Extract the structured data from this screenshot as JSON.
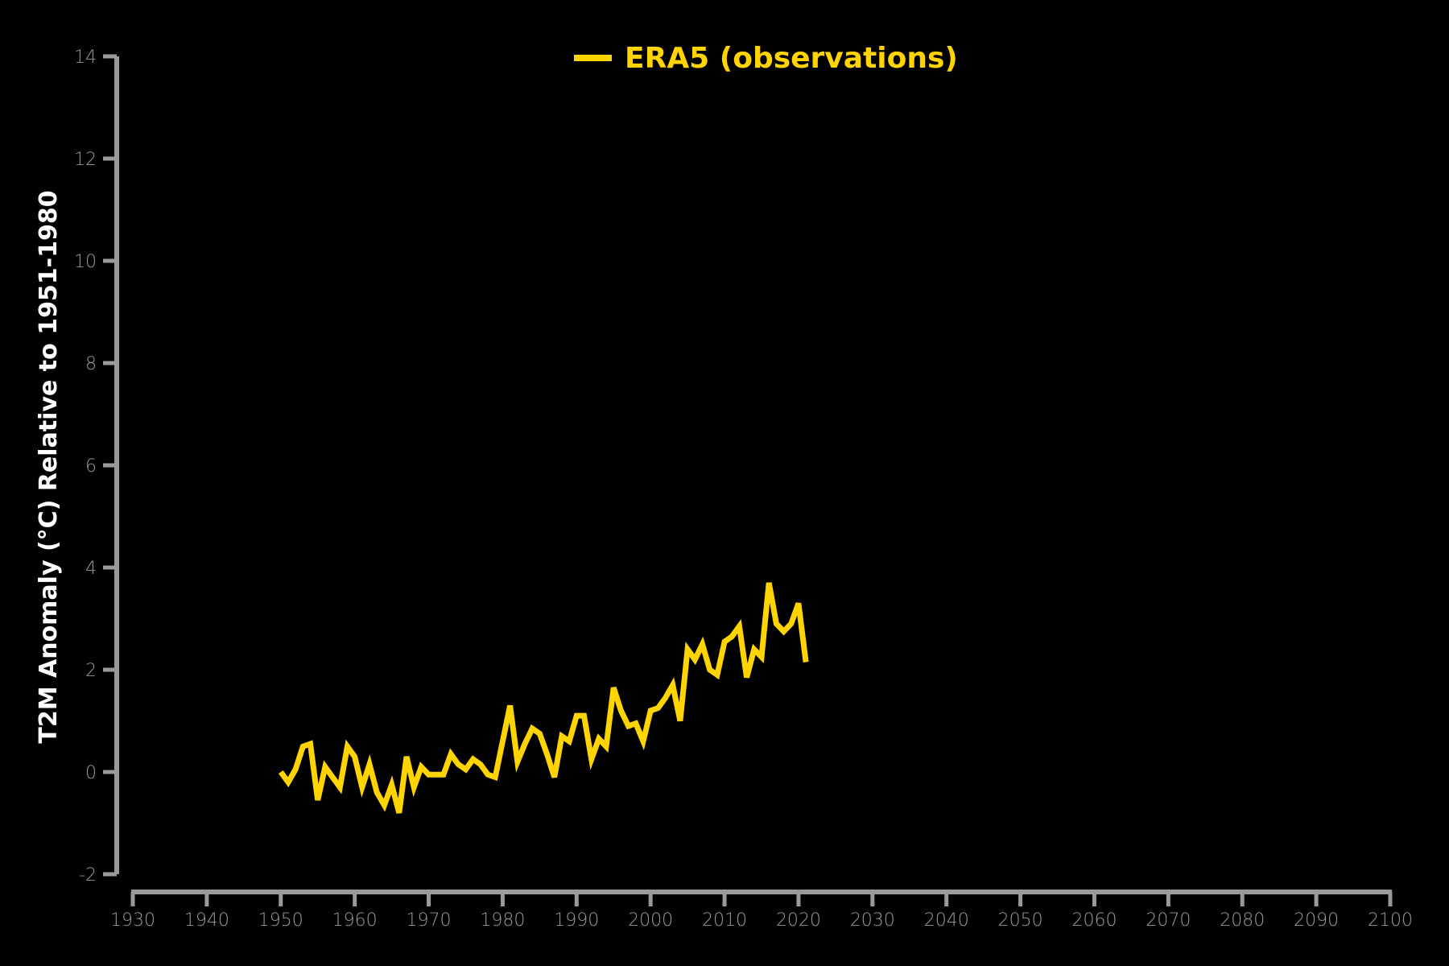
{
  "chart_data": {
    "type": "line",
    "title": "",
    "ylabel": "T2M Anomaly (°C) Relative to 1951-1980",
    "xlabel": "",
    "xlim": [
      1930,
      2100
    ],
    "ylim": [
      -2,
      14
    ],
    "x_ticks": [
      "1930",
      "1940",
      "1950",
      "1960",
      "1970",
      "1980",
      "1990",
      "2000",
      "2010",
      "2020",
      "2030",
      "2040",
      "2050",
      "2060",
      "2070",
      "2080",
      "2090",
      "2100"
    ],
    "y_ticks": [
      "-2",
      "0",
      "2",
      "4",
      "6",
      "8",
      "10",
      "12",
      "14"
    ],
    "grid": false,
    "legend_position": "top-center",
    "colors": {
      "background": "#000000",
      "axis": "#9a9a9a",
      "series": "#ffd400"
    },
    "series": [
      {
        "name": "ERA5 (observations)",
        "x": [
          1950,
          1951,
          1952,
          1953,
          1954,
          1955,
          1956,
          1957,
          1958,
          1959,
          1960,
          1961,
          1962,
          1963,
          1964,
          1965,
          1966,
          1967,
          1968,
          1969,
          1970,
          1971,
          1972,
          1973,
          1974,
          1975,
          1976,
          1977,
          1978,
          1979,
          1980,
          1981,
          1982,
          1983,
          1984,
          1985,
          1986,
          1987,
          1988,
          1989,
          1990,
          1991,
          1992,
          1993,
          1994,
          1995,
          1996,
          1997,
          1998,
          1999,
          2000,
          2001,
          2002,
          2003,
          2004,
          2005,
          2006,
          2007,
          2008,
          2009,
          2010,
          2011,
          2012,
          2013,
          2014,
          2015,
          2016,
          2017,
          2018,
          2019,
          2020,
          2021
        ],
        "values": [
          0.0,
          -0.2,
          0.05,
          0.5,
          0.55,
          -0.55,
          0.1,
          -0.1,
          -0.3,
          0.5,
          0.3,
          -0.3,
          0.15,
          -0.4,
          -0.65,
          -0.25,
          -0.8,
          0.3,
          -0.3,
          0.1,
          -0.05,
          -0.05,
          -0.05,
          0.35,
          0.15,
          0.05,
          0.25,
          0.15,
          -0.05,
          -0.1,
          0.6,
          1.3,
          0.2,
          0.55,
          0.85,
          0.75,
          0.35,
          -0.1,
          0.7,
          0.6,
          1.1,
          1.1,
          0.25,
          0.65,
          0.5,
          1.65,
          1.2,
          0.9,
          0.95,
          0.6,
          1.2,
          1.25,
          1.45,
          1.7,
          1.0,
          2.4,
          2.2,
          2.5,
          2.0,
          1.9,
          2.55,
          2.65,
          2.85,
          1.85,
          2.4,
          2.25,
          3.7,
          2.9,
          2.75,
          2.9,
          3.3,
          2.15
        ]
      }
    ]
  }
}
